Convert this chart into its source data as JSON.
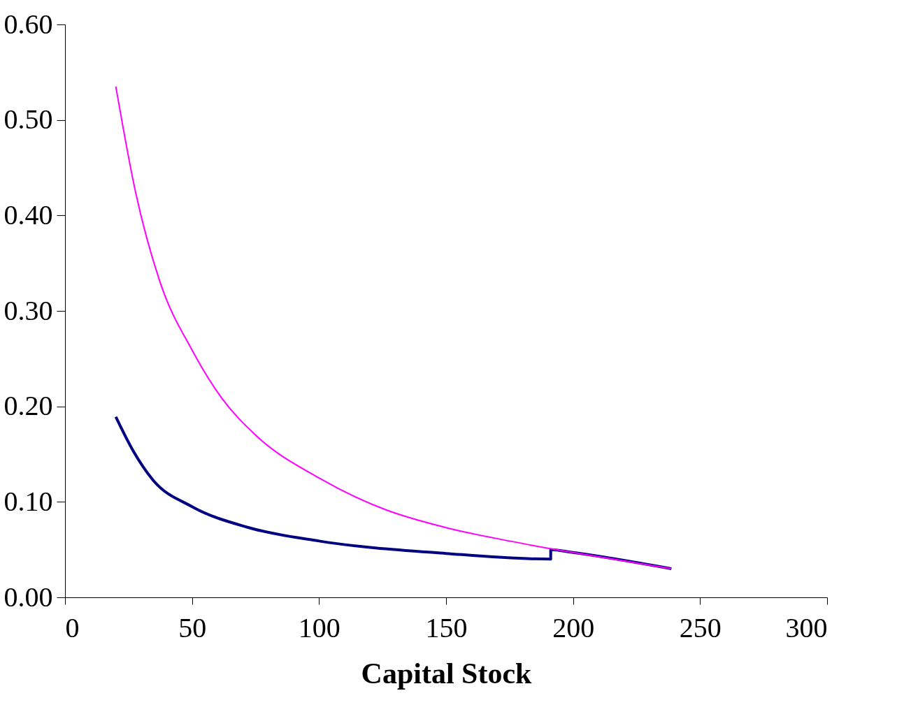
{
  "chart_data": {
    "type": "line",
    "xlabel": "Capital Stock",
    "xlim": [
      0,
      300
    ],
    "xticks": [
      0,
      50,
      100,
      150,
      200,
      250,
      300
    ],
    "ylim": [
      0,
      0.6
    ],
    "yticks": [
      {
        "value": 0,
        "label": "0.00"
      },
      {
        "value": 0.1,
        "label": "0.10"
      },
      {
        "value": 0.2,
        "label": "0.20"
      },
      {
        "value": 0.3,
        "label": "0.30"
      },
      {
        "value": 0.4,
        "label": "0.40"
      },
      {
        "value": 0.5,
        "label": "0.50"
      },
      {
        "value": 0.6,
        "label": "0.60"
      }
    ],
    "grid": false,
    "marker": "none",
    "line_style": "solid",
    "series": [
      {
        "color": "#000080",
        "x": [
          20,
          26.5,
          34.6,
          50,
          72.4,
          100,
          150,
          191.2,
          191.2,
          200,
          238.7
        ],
        "values": [
          0.189,
          0.155,
          0.123,
          0.095,
          0.073,
          0.059,
          0.046,
          0.04,
          0.05,
          0.047,
          0.03
        ]
      },
      {
        "color": "#ff00ff",
        "x": [
          20,
          27.8,
          37.3,
          50,
          61.6,
          75,
          100,
          126,
          150,
          175,
          191,
          200,
          238.7
        ],
        "values": [
          0.535,
          0.424,
          0.331,
          0.259,
          0.209,
          0.17,
          0.125,
          0.092,
          0.073,
          0.059,
          0.051,
          0.047,
          0.03
        ]
      }
    ]
  }
}
